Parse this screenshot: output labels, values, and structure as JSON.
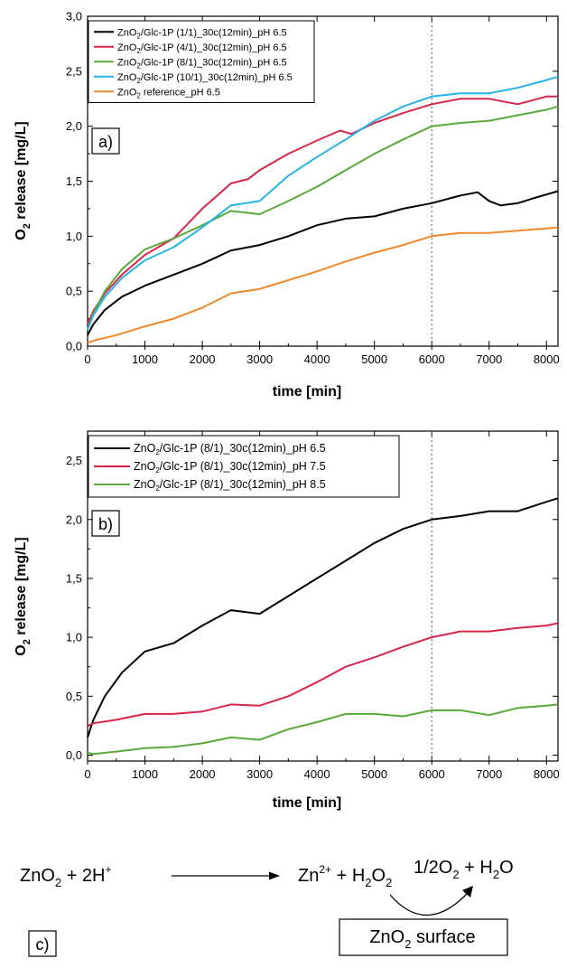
{
  "chart_data": [
    {
      "type": "line",
      "panel_label": "a)",
      "xlabel": "time [min]",
      "ylabel_main": "O",
      "ylabel_sub": "2",
      "ylabel_rest": " release [mg/L]",
      "xlim": [
        0,
        8200
      ],
      "ylim": [
        0,
        3.0
      ],
      "xticks": [
        0,
        1000,
        2000,
        3000,
        4000,
        5000,
        6000,
        7000,
        8000
      ],
      "xtick_labels": [
        "0",
        "1000",
        "2000",
        "3000",
        "4000",
        "5000",
        "6000",
        "7000",
        "8000"
      ],
      "yticks": [
        0,
        0.5,
        1.0,
        1.5,
        2.0,
        2.5,
        3.0
      ],
      "ytick_labels": [
        "0,0",
        "0,5",
        "1,0",
        "1,5",
        "2,0",
        "2,5",
        "3,0"
      ],
      "vline_x": 6000,
      "legend_position": "top-left",
      "grid": false,
      "series": [
        {
          "name": "ZnO2/Glc-1P (1/1)_30c(12min)_pH 6.5",
          "name_pre": "ZnO",
          "name_sub": "2",
          "name_post": "/Glc-1P (1/1)_30c(12min)_pH 6.5",
          "color": "#000000",
          "x": [
            0,
            100,
            300,
            600,
            1000,
            1500,
            2000,
            2500,
            3000,
            3500,
            4000,
            4500,
            5000,
            5500,
            6000,
            6500,
            6800,
            7000,
            7200,
            7500,
            7800,
            8200
          ],
          "y": [
            0.1,
            0.2,
            0.33,
            0.45,
            0.55,
            0.65,
            0.75,
            0.87,
            0.92,
            1.0,
            1.1,
            1.16,
            1.18,
            1.25,
            1.3,
            1.37,
            1.4,
            1.32,
            1.28,
            1.3,
            1.35,
            1.41
          ]
        },
        {
          "name": "ZnO2/Glc-1P (4/1)_30c(12min)_pH 6.5",
          "name_pre": "ZnO",
          "name_sub": "2",
          "name_post": "/Glc-1P (4/1)_30c(12min)_pH 6.5",
          "color": "#d6274b",
          "x": [
            0,
            100,
            300,
            600,
            1000,
            1500,
            2000,
            2500,
            2800,
            3000,
            3500,
            4000,
            4400,
            4600,
            5000,
            5500,
            6000,
            6500,
            7000,
            7500,
            8000,
            8200
          ],
          "y": [
            0.2,
            0.32,
            0.48,
            0.65,
            0.83,
            0.98,
            1.25,
            1.48,
            1.52,
            1.6,
            1.75,
            1.87,
            1.96,
            1.93,
            2.03,
            2.12,
            2.2,
            2.25,
            2.25,
            2.2,
            2.27,
            2.27
          ]
        },
        {
          "name": "ZnO2/Glc-1P (8/1)_30c(12min)_pH 6.5",
          "name_pre": "ZnO",
          "name_sub": "2",
          "name_post": "/Glc-1P (8/1)_30c(12min)_pH 6.5",
          "color": "#5aa93a",
          "x": [
            0,
            100,
            300,
            600,
            1000,
            1500,
            2000,
            2500,
            3000,
            3500,
            4000,
            4500,
            5000,
            5500,
            6000,
            6500,
            7000,
            7500,
            8000,
            8200
          ],
          "y": [
            0.15,
            0.3,
            0.5,
            0.7,
            0.88,
            0.98,
            1.1,
            1.23,
            1.2,
            1.32,
            1.45,
            1.6,
            1.75,
            1.88,
            2.0,
            2.03,
            2.05,
            2.1,
            2.15,
            2.18
          ]
        },
        {
          "name": "ZnO2/Glc-1P (10/1)_30c(12min)_pH 6.5",
          "name_pre": "ZnO",
          "name_sub": "2",
          "name_post": "/Glc-1P (10/1)_30c(12min)_pH 6.5",
          "color": "#27b3e6",
          "x": [
            0,
            100,
            300,
            600,
            1000,
            1500,
            2000,
            2500,
            3000,
            3500,
            4000,
            4500,
            5000,
            5500,
            6000,
            6500,
            7000,
            7500,
            8000,
            8200
          ],
          "y": [
            0.15,
            0.28,
            0.45,
            0.62,
            0.78,
            0.9,
            1.08,
            1.28,
            1.32,
            1.55,
            1.72,
            1.88,
            2.05,
            2.18,
            2.27,
            2.3,
            2.3,
            2.35,
            2.42,
            2.45
          ]
        },
        {
          "name": "ZnO2 reference_pH 6.5",
          "name_pre": "ZnO",
          "name_sub": "2",
          "name_post": " reference_pH 6.5",
          "color": "#f0892b",
          "x": [
            0,
            100,
            500,
            1000,
            1500,
            2000,
            2500,
            3000,
            3500,
            4000,
            4500,
            5000,
            5500,
            6000,
            6500,
            7000,
            7500,
            8000,
            8200
          ],
          "y": [
            0.03,
            0.05,
            0.1,
            0.18,
            0.25,
            0.35,
            0.48,
            0.52,
            0.6,
            0.68,
            0.77,
            0.85,
            0.92,
            1.0,
            1.03,
            1.03,
            1.05,
            1.07,
            1.08
          ]
        }
      ]
    },
    {
      "type": "line",
      "panel_label": "b)",
      "xlabel": "time [min]",
      "ylabel_main": "O",
      "ylabel_sub": "2",
      "ylabel_rest": " release [mg/L]",
      "xlim": [
        0,
        8200
      ],
      "ylim": [
        -0.05,
        2.75
      ],
      "xticks": [
        0,
        1000,
        2000,
        3000,
        4000,
        5000,
        6000,
        7000,
        8000
      ],
      "xtick_labels": [
        "0",
        "1000",
        "2000",
        "3000",
        "4000",
        "5000",
        "6000",
        "7000",
        "8000"
      ],
      "yticks": [
        0,
        0.5,
        1.0,
        1.5,
        2.0,
        2.5
      ],
      "ytick_labels": [
        "0,0",
        "0,5",
        "1,0",
        "1,5",
        "2,0",
        "2,5"
      ],
      "vline_x": 6000,
      "legend_position": "top-left",
      "grid": false,
      "series": [
        {
          "name": "ZnO2/Glc-1P (8/1)_30c(12min)_pH 6.5",
          "name_pre": "ZnO",
          "name_sub": "2",
          "name_post": "/Glc-1P (8/1)_30c(12min)_pH 6.5",
          "color": "#000000",
          "x": [
            0,
            100,
            300,
            600,
            1000,
            1500,
            2000,
            2500,
            3000,
            3500,
            4000,
            4500,
            5000,
            5500,
            6000,
            6500,
            7000,
            7500,
            8000,
            8200
          ],
          "y": [
            0.15,
            0.3,
            0.5,
            0.7,
            0.88,
            0.95,
            1.1,
            1.23,
            1.2,
            1.35,
            1.5,
            1.65,
            1.8,
            1.92,
            2.0,
            2.03,
            2.07,
            2.07,
            2.15,
            2.18
          ]
        },
        {
          "name": "ZnO2/Glc-1P (8/1)_30c(12min)_pH 7.5",
          "name_pre": "ZnO",
          "name_sub": "2",
          "name_post": "/Glc-1P (8/1)_30c(12min)_pH 7.5",
          "color": "#d6274b",
          "x": [
            0,
            100,
            500,
            1000,
            1500,
            2000,
            2500,
            3000,
            3500,
            4000,
            4500,
            5000,
            5500,
            6000,
            6500,
            7000,
            7500,
            8000,
            8200
          ],
          "y": [
            0.25,
            0.27,
            0.3,
            0.35,
            0.35,
            0.37,
            0.43,
            0.42,
            0.5,
            0.62,
            0.75,
            0.83,
            0.92,
            1.0,
            1.05,
            1.05,
            1.08,
            1.1,
            1.12
          ]
        },
        {
          "name": "ZnO2/Glc-1P (8/1)_30c(12min)_pH 8.5",
          "name_pre": "ZnO",
          "name_sub": "2",
          "name_post": "/Glc-1P (8/1)_30c(12min)_pH 8.5",
          "color": "#5aa93a",
          "x": [
            0,
            100,
            500,
            1000,
            1500,
            2000,
            2500,
            3000,
            3500,
            4000,
            4500,
            5000,
            5500,
            6000,
            6500,
            7000,
            7500,
            8000,
            8200
          ],
          "y": [
            0.02,
            0.01,
            0.03,
            0.06,
            0.07,
            0.1,
            0.15,
            0.13,
            0.22,
            0.28,
            0.35,
            0.35,
            0.33,
            0.38,
            0.38,
            0.34,
            0.4,
            0.42,
            0.43
          ]
        }
      ]
    }
  ],
  "scheme": {
    "panel_label": "c)",
    "reactant": {
      "main": "ZnO",
      "sub": "2",
      "plus": " + 2H",
      "sup": "+"
    },
    "product1": {
      "main": "Zn",
      "sup": "2+",
      "plus": " + H",
      "sub": "2",
      "end": "O",
      "sub2": "2"
    },
    "product2": {
      "pre": "1/2O",
      "sub": "2",
      "mid": " + H",
      "sub2": "2",
      "end": "O"
    },
    "surface": {
      "main": "ZnO",
      "sub": "2",
      "rest": " surface"
    }
  }
}
